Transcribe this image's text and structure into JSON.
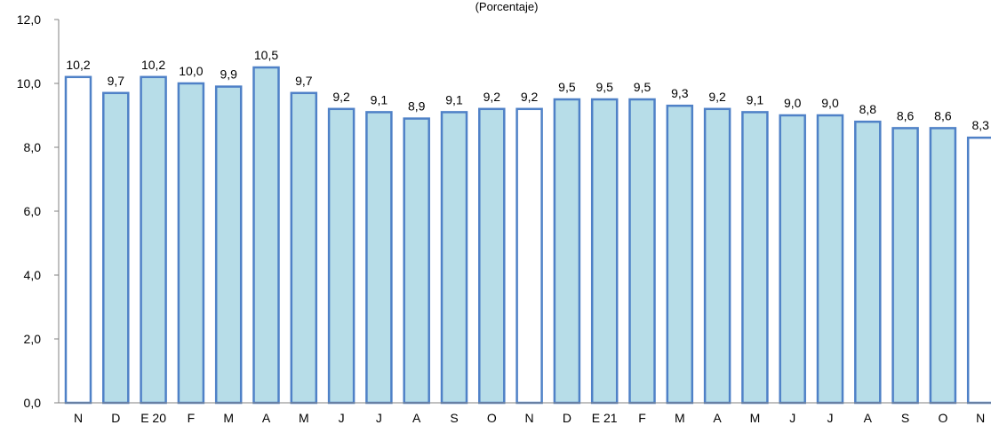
{
  "chart_data": {
    "type": "bar",
    "subtitle": "(Porcentaje)",
    "categories": [
      "N",
      "D",
      "E 20",
      "F",
      "M",
      "A",
      "M",
      "J",
      "J",
      "A",
      "S",
      "O",
      "N",
      "D",
      "E 21",
      "F",
      "M",
      "A",
      "M",
      "J",
      "J",
      "A",
      "S",
      "O",
      "N"
    ],
    "values": [
      10.2,
      9.7,
      10.2,
      10.0,
      9.9,
      10.5,
      9.7,
      9.2,
      9.1,
      8.9,
      9.1,
      9.2,
      9.2,
      9.5,
      9.5,
      9.5,
      9.3,
      9.2,
      9.1,
      9.0,
      9.0,
      8.8,
      8.6,
      8.6,
      8.3
    ],
    "value_labels": [
      "10,2",
      "9,7",
      "10,2",
      "10,0",
      "9,9",
      "10,5",
      "9,7",
      "9,2",
      "9,1",
      "8,9",
      "9,1",
      "9,2",
      "9,2",
      "9,5",
      "9,5",
      "9,5",
      "9,3",
      "9,2",
      "9,1",
      "9,0",
      "9,0",
      "8,8",
      "8,6",
      "8,6",
      "8,3"
    ],
    "highlighted": [
      true,
      false,
      false,
      false,
      false,
      false,
      false,
      false,
      false,
      false,
      false,
      false,
      true,
      false,
      false,
      false,
      false,
      false,
      false,
      false,
      false,
      false,
      false,
      false,
      true
    ],
    "ylim": [
      0,
      12
    ],
    "yticks": [
      "0,0",
      "2,0",
      "4,0",
      "6,0",
      "8,0",
      "10,0",
      "12,0"
    ],
    "grid": false,
    "colors": {
      "bar_fill": "#b7dde8",
      "bar_stroke": "#4f81c7",
      "highlight_fill": "#ffffff",
      "axis": "#808080"
    }
  }
}
